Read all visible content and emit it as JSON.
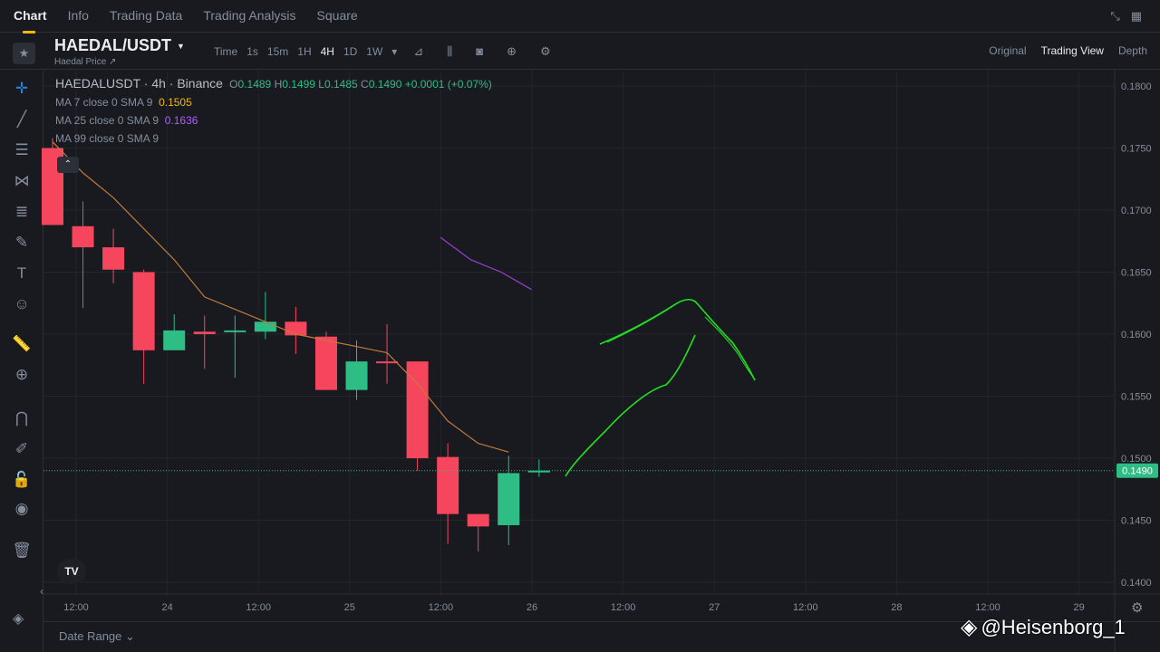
{
  "topnav": {
    "tabs": [
      "Chart",
      "Info",
      "Trading Data",
      "Trading Analysis",
      "Square"
    ],
    "active": "Chart"
  },
  "header": {
    "pair": "HAEDAL/USDT",
    "subtitle": "Haedal Price ↗",
    "intervals": [
      "Time",
      "1s",
      "15m",
      "1H",
      "4H",
      "1D",
      "1W"
    ],
    "active_interval": "4H",
    "views": [
      "Original",
      "Trading View",
      "Depth"
    ],
    "active_view": "Trading View"
  },
  "legend": {
    "symbol": "HAEDALUSDT · 4h · Binance",
    "o_label": "O",
    "o": "0.1489",
    "h_label": "H",
    "h": "0.1499",
    "l_label": "L",
    "l": "0.1485",
    "c_label": "C",
    "c": "0.1490",
    "chg": "+0.0001 (+0.07%)",
    "ma7_label": "MA 7 close 0 SMA 9",
    "ma7_val": "0.1505",
    "ma25_label": "MA 25 close 0 SMA 9",
    "ma25_val": "0.1636",
    "ma99_label": "MA 99 close 0 SMA 9"
  },
  "colors": {
    "up": "#2ebd85",
    "down": "#f6465d",
    "ma7": "#f0b90b",
    "ma25": "#b659ff",
    "drawing": "#22e01f",
    "bg": "#181a20"
  },
  "chart_data": {
    "type": "candlestick",
    "y_ticks": [
      "0.1800",
      "0.1750",
      "0.1700",
      "0.1650",
      "0.1600",
      "0.1550",
      "0.1500",
      "0.1450",
      "0.1400"
    ],
    "x_ticks": [
      "12:00",
      "24",
      "12:00",
      "25",
      "12:00",
      "26",
      "12:00",
      "27",
      "12:00",
      "28",
      "12:00",
      "29"
    ],
    "last_price": "0.1490",
    "ylim": [
      0.14,
      0.18
    ],
    "candles": [
      {
        "o": 0.175,
        "h": 0.1758,
        "l": 0.1688,
        "c": 0.1688
      },
      {
        "o": 0.1687,
        "h": 0.1707,
        "l": 0.1621,
        "c": 0.167
      },
      {
        "o": 0.167,
        "h": 0.1685,
        "l": 0.1641,
        "c": 0.1652
      },
      {
        "o": 0.165,
        "h": 0.1652,
        "l": 0.156,
        "c": 0.1587
      },
      {
        "o": 0.1587,
        "h": 0.1616,
        "l": 0.1587,
        "c": 0.1603
      },
      {
        "o": 0.1602,
        "h": 0.1615,
        "l": 0.1572,
        "c": 0.16
      },
      {
        "o": 0.1602,
        "h": 0.1615,
        "l": 0.1565,
        "c": 0.1603
      },
      {
        "o": 0.1602,
        "h": 0.1634,
        "l": 0.1596,
        "c": 0.161
      },
      {
        "o": 0.161,
        "h": 0.1622,
        "l": 0.1584,
        "c": 0.1599
      },
      {
        "o": 0.1598,
        "h": 0.1602,
        "l": 0.1555,
        "c": 0.1555
      },
      {
        "o": 0.1555,
        "h": 0.1595,
        "l": 0.1547,
        "c": 0.1578
      },
      {
        "o": 0.1578,
        "h": 0.1608,
        "l": 0.156,
        "c": 0.1577
      },
      {
        "o": 0.1578,
        "h": 0.1578,
        "l": 0.149,
        "c": 0.15
      },
      {
        "o": 0.1501,
        "h": 0.1512,
        "l": 0.1431,
        "c": 0.1455
      },
      {
        "o": 0.1455,
        "h": 0.1455,
        "l": 0.1425,
        "c": 0.1445
      },
      {
        "o": 0.1446,
        "h": 0.1502,
        "l": 0.143,
        "c": 0.1488
      },
      {
        "o": 0.1489,
        "h": 0.1499,
        "l": 0.1485,
        "c": 0.149
      }
    ],
    "ma7": [
      0.1755,
      0.173,
      0.171,
      0.1685,
      0.166,
      0.163,
      0.162,
      0.161,
      0.16,
      0.1595,
      0.159,
      0.1585,
      0.156,
      0.153,
      0.1512,
      0.1505
    ],
    "ma25": [
      0.1678,
      0.166,
      0.165,
      0.1636
    ]
  }
}
